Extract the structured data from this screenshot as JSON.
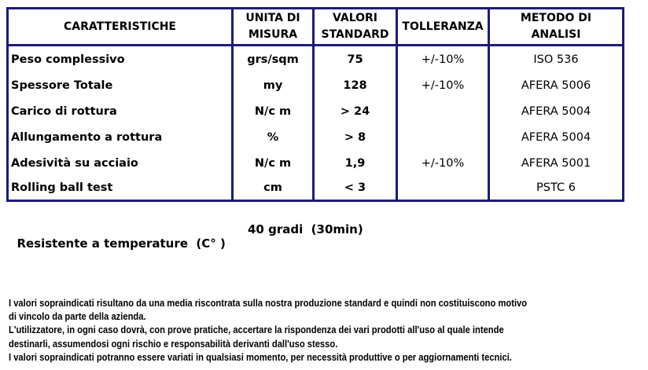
{
  "colors": {
    "border": "#1c1c78"
  },
  "table": {
    "headers": [
      [
        "CARATTERISTICHE"
      ],
      [
        "UNITA DI",
        "MISURA"
      ],
      [
        "VALORI",
        "STANDARD"
      ],
      [
        "TOLLERANZA"
      ],
      [
        "METODO DI",
        "ANALISI"
      ]
    ],
    "rows": [
      [
        "Peso complessivo",
        "grs/sqm",
        "75",
        "+/-10%",
        "ISO 536"
      ],
      [
        "Spessore Totale",
        "my",
        "128",
        "+/-10%",
        "AFERA 5006"
      ],
      [
        "Carico di rottura",
        "N/c m",
        "> 24",
        "",
        "AFERA 5004"
      ],
      [
        "Allungamento a rottura",
        "%",
        "> 8",
        "",
        "AFERA 5004"
      ],
      [
        "Adesività su acciaio",
        "N/c m",
        "1,9",
        "+/-10%",
        "AFERA 5001"
      ],
      [
        "Rolling ball test",
        "cm",
        "< 3",
        "",
        "PSTC 6"
      ]
    ]
  },
  "temperature": {
    "label": "Resistente a temperature  (C° )",
    "value": "40 gradi  (30min)"
  },
  "notes": [
    "I valori sopraindicati risultano da una media riscontrata sulla nostra produzione standard e quindi non costituiscono motivo",
    "di vincolo da parte della azienda.",
    "L'utilizzatore, in  ogni caso dovrà, con prove pratiche, accertare la rispondenza dei vari prodotti all'uso al quale intende",
    "destinarli, assumendosi ogni rischio e responsabilità derivanti dall'uso stesso.",
    "I valori sopraindicati potranno essere variati in qualsiasi momento, per necessità produttive o per aggiornamenti tecnici."
  ]
}
